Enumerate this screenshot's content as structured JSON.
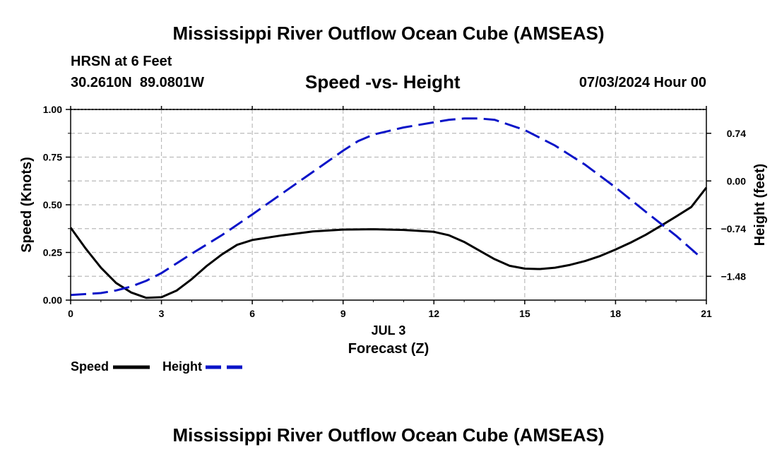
{
  "header": {
    "title": "Mississippi River Outflow Ocean Cube (AMSEAS)",
    "station": "HRSN at 6 Feet",
    "coords": "30.2610N  89.0801W",
    "subtitle": "Speed -vs- Height",
    "datetime": "07/03/2024 Hour 00"
  },
  "footer": {
    "title": "Mississippi River Outflow Ocean Cube (AMSEAS)"
  },
  "legend": {
    "speed_label": "Speed",
    "height_label": "Height"
  },
  "chart_data": {
    "type": "line",
    "title": "Speed -vs- Height",
    "xlabel": "Forecast (Z)",
    "xlabel_date": "JUL 3",
    "ylabel": "Speed (Knots)",
    "y2label": "Height (feet)",
    "xlim": [
      0,
      21
    ],
    "ylim": [
      0,
      1
    ],
    "y2lim": [
      -1.85,
      1.11
    ],
    "x_ticks": [
      "0",
      "3",
      "6",
      "9",
      "12",
      "15",
      "18",
      "21"
    ],
    "x_tick_values": [
      0,
      3,
      6,
      9,
      12,
      15,
      18,
      21
    ],
    "y_ticks": [
      "0.00",
      "0.25",
      "0.50",
      "0.75",
      "1.00"
    ],
    "y_tick_values": [
      0,
      0.25,
      0.5,
      0.75,
      1.0
    ],
    "y2_ticks": [
      "0.74",
      "0.00",
      "−0.74",
      "−1.48"
    ],
    "y2_tick_values": [
      0.74,
      0.0,
      -0.74,
      -1.48
    ],
    "colors": {
      "speed": "#000000",
      "height": "#0a14c8",
      "grid": "#bbbbbb"
    },
    "series": [
      {
        "name": "Speed",
        "axis": "left",
        "style": "solid",
        "x": [
          0,
          0.5,
          1,
          1.5,
          2,
          2.5,
          3,
          3.5,
          4,
          4.5,
          5,
          5.5,
          6,
          7,
          8,
          9,
          10,
          11,
          12,
          12.5,
          13,
          13.5,
          14,
          14.5,
          15,
          15.5,
          16,
          16.5,
          17,
          17.5,
          18,
          18.5,
          19,
          19.5,
          20,
          20.5,
          21
        ],
        "values": [
          0.38,
          0.27,
          0.17,
          0.09,
          0.04,
          0.012,
          0.015,
          0.05,
          0.11,
          0.18,
          0.24,
          0.29,
          0.315,
          0.34,
          0.36,
          0.37,
          0.372,
          0.368,
          0.358,
          0.34,
          0.305,
          0.26,
          0.215,
          0.18,
          0.165,
          0.163,
          0.17,
          0.185,
          0.205,
          0.232,
          0.265,
          0.302,
          0.343,
          0.39,
          0.438,
          0.488,
          0.59
        ]
      },
      {
        "name": "Height",
        "axis": "right",
        "style": "dashed",
        "x": [
          0,
          1,
          1.5,
          2,
          2.5,
          3,
          4,
          5,
          6,
          7,
          8,
          9,
          9.5,
          10,
          11,
          12,
          12.5,
          13,
          13.5,
          14,
          15,
          16,
          17,
          18,
          19,
          20,
          20.8
        ],
        "values": [
          -1.77,
          -1.74,
          -1.7,
          -1.64,
          -1.55,
          -1.43,
          -1.13,
          -0.84,
          -0.52,
          -0.19,
          0.14,
          0.47,
          0.62,
          0.72,
          0.83,
          0.91,
          0.95,
          0.97,
          0.97,
          0.95,
          0.79,
          0.55,
          0.25,
          -0.1,
          -0.48,
          -0.85,
          -1.18
        ]
      }
    ]
  }
}
